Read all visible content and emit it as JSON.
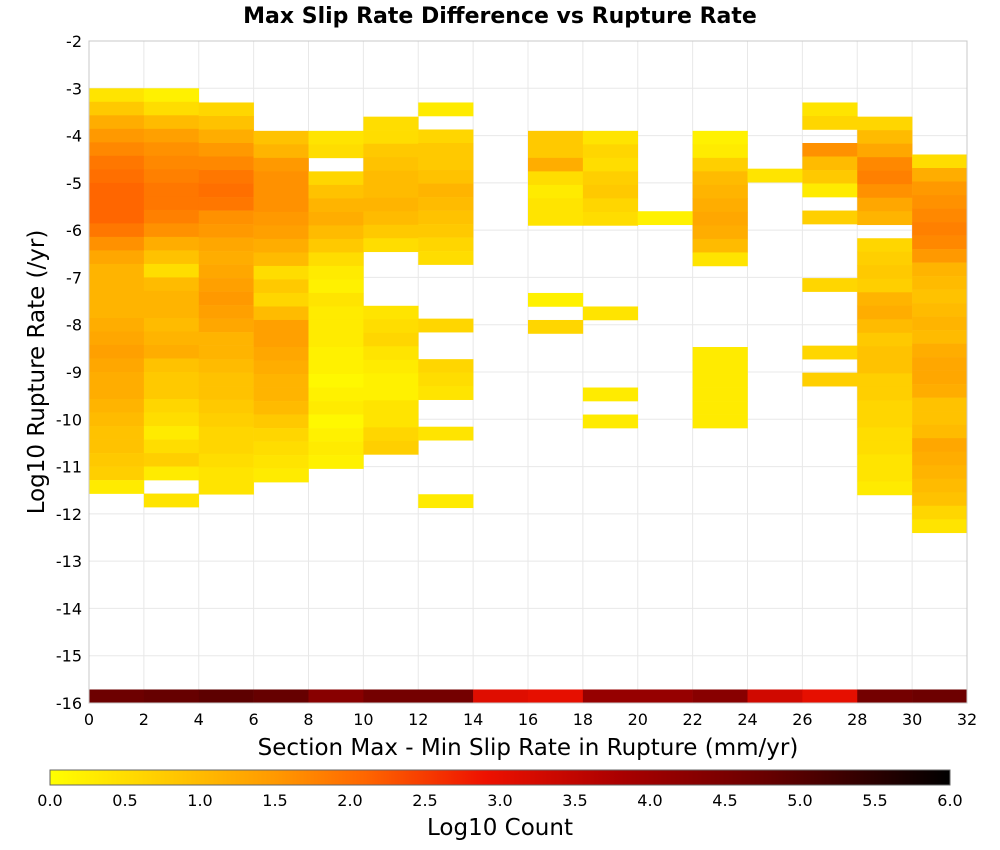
{
  "chart_data": {
    "type": "heatmap",
    "title": "Max Slip Rate Difference vs Rupture Rate",
    "xlabel": "Section Max - Min Slip Rate in Rupture (mm/yr)",
    "ylabel": "Log10 Rupture Rate (/yr)",
    "xlim": [
      0,
      32
    ],
    "ylim": [
      -16,
      -2
    ],
    "x_ticks": [
      "0",
      "2",
      "4",
      "6",
      "8",
      "10",
      "12",
      "14",
      "16",
      "18",
      "20",
      "22",
      "24",
      "26",
      "28",
      "30",
      "32"
    ],
    "y_ticks": [
      "-2",
      "-3",
      "-4",
      "-5",
      "-6",
      "-7",
      "-8",
      "-9",
      "-10",
      "-11",
      "-12",
      "-13",
      "-14",
      "-15",
      "-16"
    ],
    "grid": true,
    "x_bin_width": 2,
    "y_bin_height": 0.2857,
    "colorbar": {
      "label": "Log10 Count",
      "range": [
        0,
        6
      ],
      "ticks": [
        "0.0",
        "0.5",
        "1.0",
        "1.5",
        "2.0",
        "2.5",
        "3.0",
        "3.5",
        "4.0",
        "4.5",
        "5.0",
        "5.5",
        "6.0"
      ],
      "stops": [
        {
          "v": 0,
          "color": "#ffff00"
        },
        {
          "v": 0.75,
          "color": "#ffcc00"
        },
        {
          "v": 1.5,
          "color": "#ff9900"
        },
        {
          "v": 2.1,
          "color": "#ff6600"
        },
        {
          "v": 2.9,
          "color": "#ee1100"
        },
        {
          "v": 3.8,
          "color": "#aa0000"
        },
        {
          "v": 4.8,
          "color": "#660000"
        },
        {
          "v": 6,
          "color": "#000000"
        }
      ]
    },
    "columns": [
      {
        "x": 0,
        "top": -3.0,
        "bottom_row_value": 4.7,
        "values": [
          0.4,
          0.8,
          1.2,
          1.5,
          1.7,
          1.9,
          2.0,
          2.1,
          2.1,
          2.1,
          1.9,
          1.6,
          1.3,
          1.1,
          1.1,
          1.1,
          1.1,
          1.2,
          1.3,
          1.4,
          1.3,
          1.2,
          1.2,
          1.1,
          1.0,
          0.9,
          0.9,
          0.8,
          0.7,
          0.3
        ]
      },
      {
        "x": 2,
        "top": -3.0,
        "bottom_row_value": 4.8,
        "values": [
          0.2,
          0.5,
          1.0,
          1.4,
          1.6,
          1.7,
          1.8,
          1.9,
          1.9,
          1.8,
          1.6,
          1.2,
          0.9,
          0.5,
          1.0,
          1.1,
          1.1,
          1.0,
          1.1,
          1.2,
          0.9,
          0.8,
          0.8,
          0.6,
          0.5,
          0.3,
          0.5,
          0.7,
          0.3,
          null,
          0.4
        ]
      },
      {
        "x": 4,
        "top": -3.3,
        "bottom_row_value": 4.9,
        "values": [
          0.6,
          0.9,
          1.2,
          1.5,
          1.7,
          1.9,
          2.0,
          1.9,
          1.6,
          1.5,
          1.3,
          1.2,
          1.3,
          1.4,
          1.5,
          1.4,
          1.3,
          1.1,
          1.1,
          1.0,
          0.9,
          0.9,
          0.8,
          0.7,
          0.6,
          0.6,
          0.5,
          0.4,
          0.4
        ]
      },
      {
        "x": 6,
        "top": -3.9,
        "bottom_row_value": 4.8,
        "values": [
          0.9,
          1.1,
          1.5,
          1.6,
          1.6,
          1.6,
          1.5,
          1.4,
          1.2,
          1.0,
          0.5,
          0.8,
          0.6,
          1.0,
          1.4,
          1.4,
          1.3,
          1.2,
          1.1,
          1.1,
          1.0,
          0.8,
          0.6,
          0.5,
          0.4,
          0.3
        ]
      },
      {
        "x": 8,
        "top": -3.9,
        "bottom_row_value": 4.3,
        "values": [
          0.4,
          0.5,
          null,
          0.6,
          0.9,
          1.1,
          1.2,
          1.0,
          0.8,
          0.5,
          0.3,
          0.2,
          0.4,
          0.3,
          0.3,
          0.3,
          0.2,
          0.2,
          0.1,
          0.2,
          0.3,
          0.1,
          0.2,
          0.3,
          0.2
        ]
      },
      {
        "x": 10,
        "top": -3.6,
        "bottom_row_value": 4.6,
        "values": [
          0.5,
          0.5,
          0.8,
          0.9,
          1.0,
          1.0,
          1.1,
          1.0,
          0.8,
          0.5,
          null,
          null,
          null,
          null,
          0.4,
          0.5,
          0.6,
          0.4,
          0.3,
          0.2,
          0.2,
          0.4,
          0.4,
          0.6,
          0.7
        ]
      },
      {
        "x": 12,
        "top": -3.3,
        "bottom_row_value": 4.6,
        "values": [
          0.3,
          null,
          0.6,
          0.8,
          0.8,
          0.9,
          1.1,
          1.0,
          0.9,
          0.8,
          0.6,
          0.5,
          null,
          null,
          null,
          null,
          0.6,
          null,
          null,
          0.6,
          0.5,
          0.4,
          null,
          null,
          0.4,
          null,
          null,
          null,
          null,
          0.3
        ]
      },
      {
        "x": 14,
        "top": -16.0,
        "bottom_row_value": 3.1,
        "values": []
      },
      {
        "x": 16,
        "top": -3.9,
        "bottom_row_value": 3.0,
        "values": [
          0.8,
          0.8,
          1.2,
          0.5,
          0.3,
          0.4,
          0.4,
          null,
          null,
          null,
          null,
          null,
          0.2,
          null,
          0.6
        ]
      },
      {
        "x": 18,
        "top": -3.9,
        "bottom_row_value": 4.1,
        "values": [
          0.4,
          0.6,
          0.5,
          0.7,
          0.8,
          0.6,
          0.5,
          null,
          null,
          null,
          null,
          null,
          null,
          0.4,
          null,
          null,
          null,
          null,
          null,
          0.3,
          null,
          0.3
        ]
      },
      {
        "x": 20,
        "top": -5.6,
        "bottom_row_value": 4.1,
        "values": [
          0.2
        ]
      },
      {
        "x": 22,
        "top": -3.9,
        "bottom_row_value": 4.3,
        "values": [
          0.2,
          0.3,
          0.7,
          1.0,
          1.1,
          1.2,
          1.3,
          1.2,
          1.0,
          0.4,
          null,
          null,
          null,
          null,
          null,
          null,
          0.3,
          0.3,
          0.3,
          0.3,
          0.3,
          0.3
        ]
      },
      {
        "x": 24,
        "top": -4.7,
        "bottom_row_value": 3.3,
        "values": [
          0.4
        ]
      },
      {
        "x": 26,
        "top": -3.3,
        "bottom_row_value": 3.0,
        "values": [
          0.4,
          0.6,
          null,
          1.6,
          1.0,
          0.8,
          0.3,
          null,
          0.7,
          null,
          null,
          null,
          null,
          0.6,
          null,
          null,
          null,
          null,
          0.6,
          null,
          0.7
        ]
      },
      {
        "x": 28,
        "top": -3.6,
        "bottom_row_value": 4.6,
        "values": [
          0.6,
          1.0,
          1.3,
          1.7,
          1.8,
          1.6,
          1.3,
          1.1,
          null,
          0.6,
          0.7,
          0.8,
          0.7,
          1.1,
          1.2,
          1.0,
          0.8,
          0.9,
          0.9,
          0.7,
          0.7,
          0.6,
          0.6,
          0.5,
          0.5,
          0.4,
          0.4,
          0.3
        ]
      },
      {
        "x": 30,
        "top": -4.4,
        "bottom_row_value": 4.7,
        "values": [
          0.5,
          1.2,
          1.5,
          1.6,
          1.7,
          1.8,
          1.7,
          1.5,
          1.1,
          1.0,
          0.9,
          1.0,
          1.1,
          1.0,
          1.2,
          1.3,
          1.3,
          1.2,
          0.9,
          0.9,
          1.0,
          1.3,
          1.2,
          1.1,
          1.0,
          0.9,
          0.6,
          0.4
        ]
      }
    ]
  }
}
